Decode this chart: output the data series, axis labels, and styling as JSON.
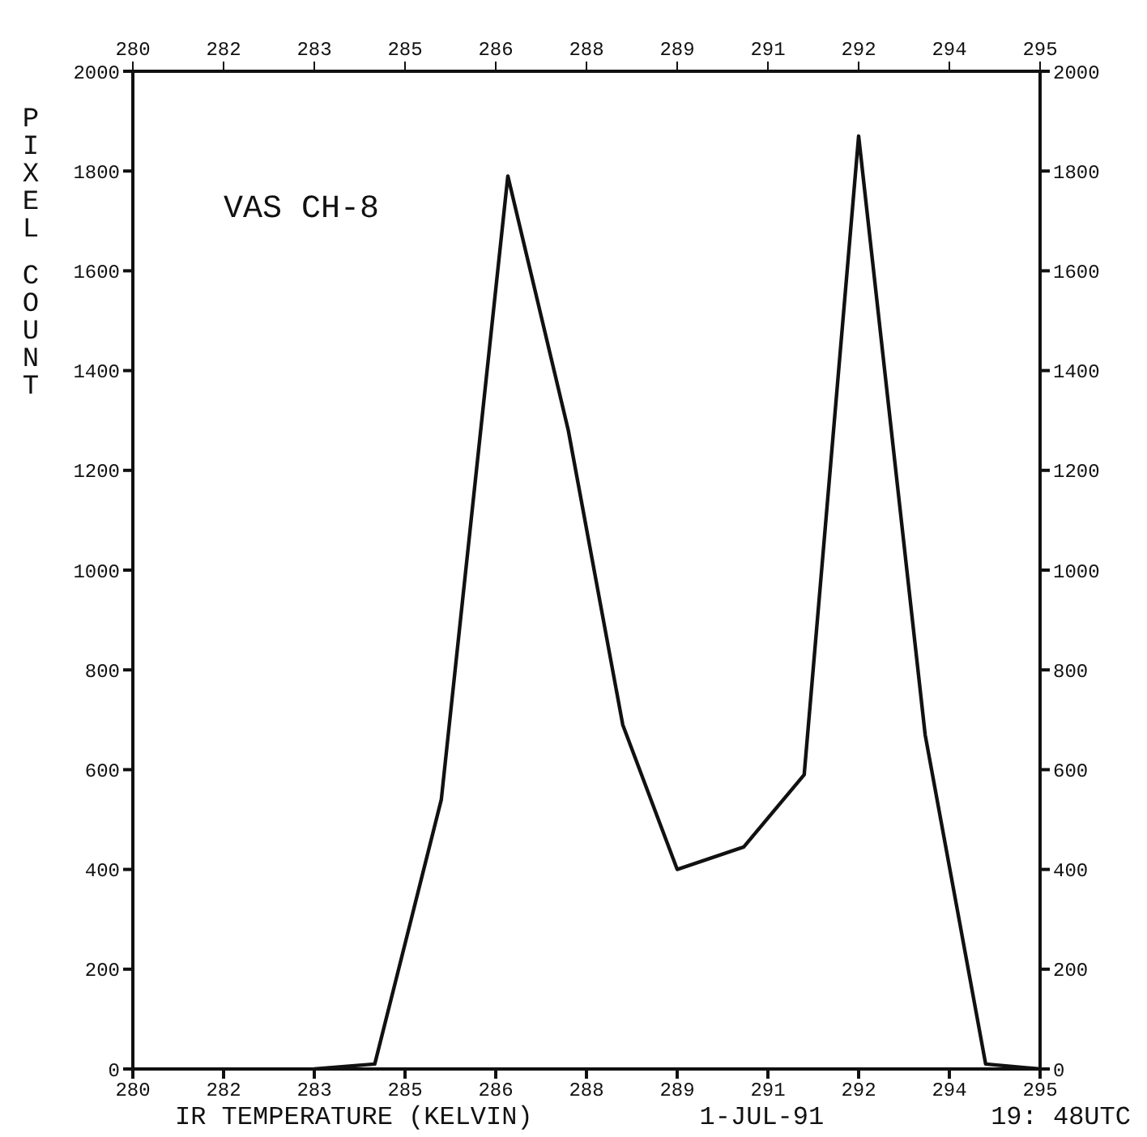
{
  "chart_data": {
    "type": "line",
    "xlabel": "IR TEMPERATURE (KELVIN)",
    "ylabel": "PIXEL COUNT",
    "annotations": [
      "VAS CH-8",
      "1-JUL-91",
      "19: 48UTC"
    ],
    "x": [
      283,
      284,
      285.1,
      286.2,
      287.2,
      288.1,
      289,
      290.1,
      291.1,
      292,
      293.1,
      294.1,
      295
    ],
    "series": [
      {
        "color": "#111111",
        "values": [
          0,
          10,
          540,
          1790,
          1280,
          690,
          400,
          445,
          590,
          1870,
          670,
          10,
          0
        ]
      }
    ],
    "xlim": [
      280,
      295
    ],
    "xticks": [
      280,
      {
        "value": 281.5,
        "label": "282"
      },
      283,
      {
        "value": 284.5,
        "label": "285"
      },
      286,
      {
        "value": 287.5,
        "label": "288"
      },
      289,
      {
        "value": 290.5,
        "label": "291"
      },
      292,
      {
        "value": 293.5,
        "label": "294"
      },
      295
    ],
    "x2lim": [
      280,
      295
    ],
    "x2ticks": [
      280,
      {
        "value": 281.5,
        "label": "282"
      },
      283,
      {
        "value": 284.5,
        "label": "285"
      },
      286,
      {
        "value": 287.5,
        "label": "288"
      },
      289,
      {
        "value": 290.5,
        "label": "291"
      },
      292,
      {
        "value": 293.5,
        "label": "294"
      },
      295
    ],
    "ylim": [
      0,
      2000
    ],
    "yticks": [
      0,
      200,
      400,
      600,
      800,
      1000,
      1200,
      1400,
      1600,
      1800,
      2000
    ],
    "y2lim": [
      0,
      2000
    ],
    "y2ticks": [
      0,
      200,
      400,
      600,
      800,
      1000,
      1200,
      1400,
      1600,
      1800,
      2000
    ],
    "grid": false,
    "legend": false,
    "marker": "none",
    "line_style": "solid"
  }
}
